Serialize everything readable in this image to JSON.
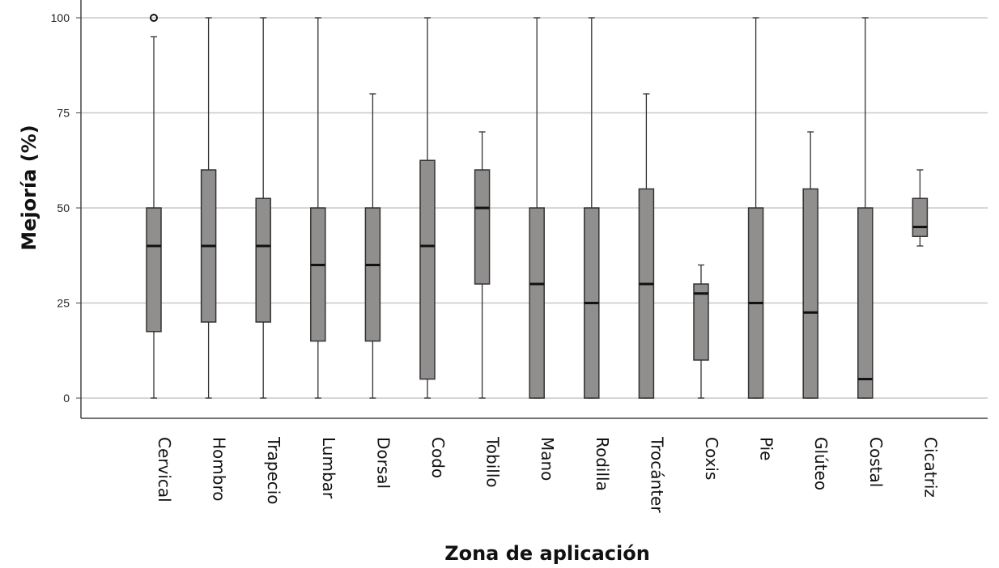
{
  "chart_data": {
    "type": "boxplot",
    "xlabel": "Zona de aplicación",
    "ylabel": "Mejoría (%)",
    "ylim": [
      -5,
      105
    ],
    "yticks": [
      0,
      25,
      50,
      75,
      100
    ],
    "grid": "horizontal",
    "colors": {
      "box_fill": "#918e8e",
      "box_stroke": "#333333",
      "grid": "#c8c8c8",
      "axis": "#444444"
    },
    "categories": [
      "Cervical",
      "Hombro",
      "Trapecio",
      "Lumbar",
      "Dorsal",
      "Codo",
      "Tobillo",
      "Mano",
      "Rodilla",
      "Trocánter",
      "Coxis",
      "Pie",
      "Glúteo",
      "Costal",
      "Cicatriz"
    ],
    "boxes": [
      {
        "min": 0,
        "q1": 17.5,
        "median": 40,
        "q3": 50,
        "max": 95,
        "outliers": [
          100
        ]
      },
      {
        "min": 0,
        "q1": 20,
        "median": 40,
        "q3": 60,
        "max": 100,
        "outliers": []
      },
      {
        "min": 0,
        "q1": 20,
        "median": 40,
        "q3": 52.5,
        "max": 100,
        "outliers": []
      },
      {
        "min": 0,
        "q1": 15,
        "median": 35,
        "q3": 50,
        "max": 100,
        "outliers": []
      },
      {
        "min": 0,
        "q1": 15,
        "median": 35,
        "q3": 50,
        "max": 80,
        "outliers": []
      },
      {
        "min": 0,
        "q1": 5,
        "median": 40,
        "q3": 62.5,
        "max": 100,
        "outliers": []
      },
      {
        "min": 0,
        "q1": 30,
        "median": 50,
        "q3": 60,
        "max": 70,
        "outliers": []
      },
      {
        "min": 0,
        "q1": 0,
        "median": 30,
        "q3": 50,
        "max": 100,
        "outliers": []
      },
      {
        "min": 0,
        "q1": 0,
        "median": 25,
        "q3": 50,
        "max": 100,
        "outliers": []
      },
      {
        "min": 0,
        "q1": 0,
        "median": 30,
        "q3": 55,
        "max": 80,
        "outliers": []
      },
      {
        "min": 0,
        "q1": 10,
        "median": 27.5,
        "q3": 30,
        "max": 35,
        "outliers": []
      },
      {
        "min": 0,
        "q1": 0,
        "median": 25,
        "q3": 50,
        "max": 100,
        "outliers": []
      },
      {
        "min": 0,
        "q1": 0,
        "median": 22.5,
        "q3": 55,
        "max": 70,
        "outliers": []
      },
      {
        "min": 0,
        "q1": 0,
        "median": 5,
        "q3": 50,
        "max": 100,
        "outliers": []
      },
      {
        "min": 40,
        "q1": 42.5,
        "median": 45,
        "q3": 52.5,
        "max": 60,
        "outliers": []
      }
    ]
  }
}
